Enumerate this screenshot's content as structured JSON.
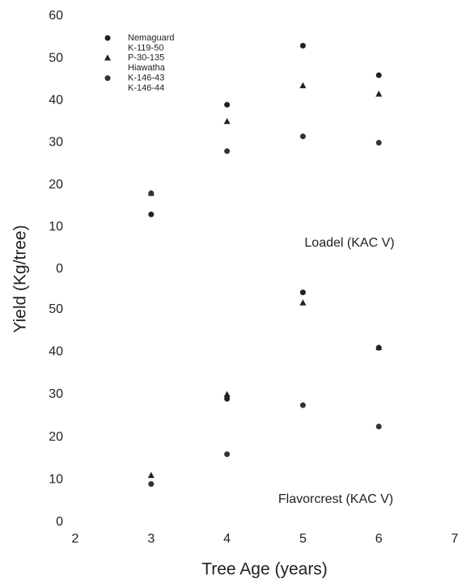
{
  "ylabel": "Yield (Kg/tree)",
  "xlabel": "Tree Age (years)",
  "chart_data": [
    {
      "type": "scatter",
      "annotation": "Loadel (KAC V)",
      "x": [
        3,
        4,
        5,
        6
      ],
      "xlim": [
        2,
        7
      ],
      "ylim": [
        0,
        60
      ],
      "yticks": [
        0,
        10,
        20,
        30,
        40,
        50,
        60
      ],
      "legend": "top-left",
      "series": [
        {
          "name": "Nemaguard",
          "color": "#222222",
          "marker": "circle",
          "values": [
            13,
            39,
            53,
            46
          ]
        },
        {
          "name": "K-119-50",
          "color": "#d8d8d8",
          "marker": "none",
          "values": [
            null,
            null,
            null,
            null
          ]
        },
        {
          "name": "P-30-135",
          "color": "#222222",
          "marker": "triangle",
          "values": [
            18,
            35,
            43.5,
            41.5
          ]
        },
        {
          "name": "Hiawatha",
          "color": "#d8d8d8",
          "marker": "none",
          "values": [
            null,
            null,
            null,
            null
          ]
        },
        {
          "name": "K-146-43",
          "color": "#333333",
          "marker": "circle",
          "values": [
            18,
            28,
            31.5,
            30
          ]
        },
        {
          "name": "K-146-44",
          "color": "#d8d8d8",
          "marker": "none",
          "values": [
            null,
            null,
            null,
            null
          ]
        }
      ]
    },
    {
      "type": "scatter",
      "annotation": "Flavorcrest (KAC V)",
      "x": [
        3,
        4,
        5,
        6
      ],
      "xlim": [
        2,
        7
      ],
      "xticks": [
        2,
        3,
        4,
        5,
        6,
        7
      ],
      "ylim": [
        0,
        60
      ],
      "yticks": [
        0,
        10,
        20,
        30,
        40,
        50
      ],
      "series": [
        {
          "name": "Nemaguard",
          "color": "#222222",
          "marker": "circle",
          "values": [
            null,
            29,
            54,
            41
          ]
        },
        {
          "name": "K-119-50",
          "color": "#d8d8d8",
          "marker": "none",
          "values": [
            null,
            null,
            null,
            null
          ]
        },
        {
          "name": "P-30-135",
          "color": "#222222",
          "marker": "triangle",
          "values": [
            11,
            30,
            51.5,
            41
          ]
        },
        {
          "name": "Hiawatha",
          "color": "#d8d8d8",
          "marker": "none",
          "values": [
            null,
            null,
            null,
            null
          ]
        },
        {
          "name": "K-146-43",
          "color": "#333333",
          "marker": "circle",
          "values": [
            9,
            16,
            27.5,
            22.5
          ]
        },
        {
          "name": "K-146-44",
          "color": "#d8d8d8",
          "marker": "none",
          "values": [
            null,
            null,
            null,
            null
          ]
        }
      ]
    }
  ]
}
